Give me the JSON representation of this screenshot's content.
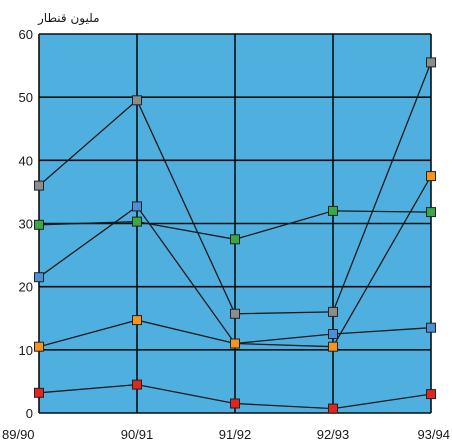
{
  "chart_data": {
    "type": "line",
    "title": "",
    "xlabel": "",
    "ylabel": "مليون قنطار",
    "categories": [
      "89/90",
      "90/91",
      "91/92",
      "92/93",
      "93/94"
    ],
    "ylim": [
      0,
      60
    ],
    "yticks": [
      0,
      10,
      20,
      30,
      40,
      50,
      60
    ],
    "grid": true,
    "legend": "none",
    "plot_background": "#4fb0e0",
    "series": [
      {
        "color": "#8c8c8c",
        "values": [
          36,
          49.5,
          15.7,
          16,
          55.5
        ]
      },
      {
        "color": "#4a8fd9",
        "values": [
          21.5,
          32.7,
          11,
          12.5,
          13.5
        ]
      },
      {
        "color": "#3aa846",
        "values": [
          29.8,
          30.3,
          27.5,
          32,
          31.8
        ]
      },
      {
        "color": "#f7941d",
        "values": [
          10.5,
          14.7,
          11,
          10.5,
          37.5
        ]
      },
      {
        "color": "#e2261c",
        "values": [
          3.2,
          4.5,
          1.5,
          0.7,
          3
        ]
      }
    ]
  }
}
